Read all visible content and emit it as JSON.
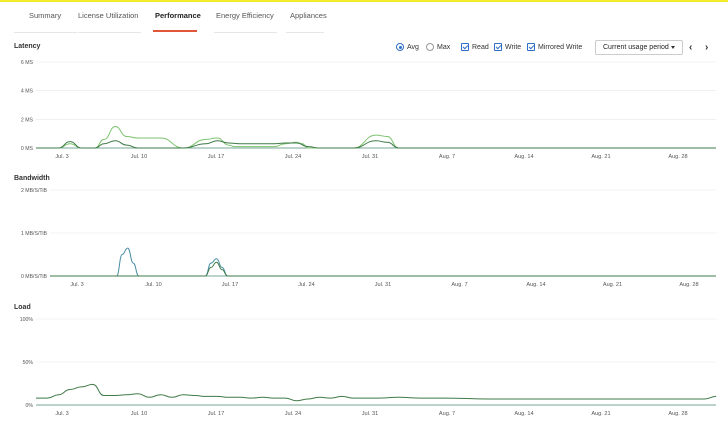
{
  "tabs": [
    {
      "label": "Summary",
      "active": false
    },
    {
      "label": "License Utilization",
      "active": false
    },
    {
      "label": "Performance",
      "active": true
    },
    {
      "label": "Energy Efficiency",
      "active": false
    },
    {
      "label": "Appliances",
      "active": false
    }
  ],
  "controls": {
    "avg_label": "Avg",
    "max_label": "Max",
    "avg_selected": true,
    "read_label": "Read",
    "write_label": "Write",
    "mirrored_label": "Mirrored Write",
    "read_checked": true,
    "write_checked": true,
    "mirrored_checked": true,
    "period_label": "Current usage period",
    "prev_icon": "chevron-left-icon",
    "next_icon": "chevron-right-icon"
  },
  "colors": {
    "light_green": "#7cc36e",
    "dark_green": "#3f7a48",
    "teal": "#4a8fa3",
    "grid": "#e8e8e8",
    "baseline": "#7aa79a",
    "tab_underline": "#e0563a",
    "accent": "#2f6fc9"
  },
  "chart_data": [
    {
      "type": "line",
      "title": "Latency",
      "y_ticks": [
        "6 MS",
        "4 MS",
        "2 MS",
        "0 MS"
      ],
      "ylim": [
        0,
        6
      ],
      "x_ticks": [
        "Jul. 3",
        "Jul. 10",
        "Jul. 17",
        "Jul. 24",
        "Jul. 31",
        "Aug. 7",
        "Aug. 14",
        "Aug. 21",
        "Aug. 28"
      ],
      "series": [
        {
          "name": "Read",
          "color": "#7cc36e",
          "x": [
            0,
            2,
            3,
            4,
            5.2,
            6,
            7,
            8,
            9,
            10,
            11,
            13,
            15,
            16,
            17,
            17.5,
            18,
            19,
            20,
            21,
            22,
            23,
            23.5,
            24,
            25,
            27,
            28,
            30,
            31,
            32,
            33,
            34,
            35,
            36,
            38,
            40,
            60
          ],
          "y": [
            0,
            0,
            0.3,
            0,
            0,
            0.6,
            1.5,
            0.8,
            0.7,
            0.7,
            0.7,
            0,
            0.6,
            0.7,
            0.2,
            0.1,
            0.1,
            0.1,
            0.1,
            0.1,
            0.3,
            0.4,
            0.3,
            0,
            0,
            0,
            0,
            0.9,
            0.8,
            0,
            0,
            0,
            0,
            0,
            0,
            0,
            0
          ]
        },
        {
          "name": "Write",
          "color": "#3f7a48",
          "x": [
            0,
            2,
            3,
            4,
            5.2,
            6,
            7,
            8,
            9,
            10,
            11,
            13,
            15,
            16,
            17,
            18,
            19,
            20,
            21,
            22,
            23,
            24,
            25,
            27,
            28,
            30,
            31,
            32,
            33,
            34,
            60
          ],
          "y": [
            0,
            0,
            0.45,
            0,
            0,
            0.3,
            0.5,
            0.2,
            0,
            0,
            0,
            0,
            0.3,
            0.5,
            0.35,
            0.3,
            0.3,
            0.3,
            0.3,
            0.35,
            0.35,
            0.1,
            0,
            0,
            0,
            0.5,
            0.4,
            0,
            0,
            0,
            0
          ]
        }
      ]
    },
    {
      "type": "line",
      "title": "Bandwidth",
      "y_ticks": [
        "2 MB/S/TiB",
        "1 MB/S/TiB",
        "0 MB/S/TiB"
      ],
      "ylim": [
        0,
        2
      ],
      "x_ticks": [
        "Jul. 3",
        "Jul. 10",
        "Jul. 17",
        "Jul. 24",
        "Jul. 31",
        "Aug. 7",
        "Aug. 14",
        "Aug. 21",
        "Aug. 28"
      ],
      "series": [
        {
          "name": "Read",
          "color": "#4a8fa3",
          "x": [
            0,
            6,
            6.5,
            7,
            7.5,
            8,
            14,
            14.5,
            15,
            15.5,
            16,
            60
          ],
          "y": [
            0,
            0,
            0.5,
            0.65,
            0.3,
            0,
            0,
            0.3,
            0.4,
            0.2,
            0,
            0
          ]
        },
        {
          "name": "Write",
          "color": "#3f7a48",
          "x": [
            0,
            14,
            14.5,
            15,
            15.5,
            16,
            60
          ],
          "y": [
            0,
            0,
            0.2,
            0.32,
            0.15,
            0,
            0
          ]
        }
      ]
    },
    {
      "type": "line",
      "title": "Load",
      "y_ticks": [
        "100%",
        "50%",
        "0%"
      ],
      "ylim": [
        0,
        100
      ],
      "x_ticks": [
        "Jul. 3",
        "Jul. 10",
        "Jul. 17",
        "Jul. 24",
        "Jul. 31",
        "Aug. 7",
        "Aug. 14",
        "Aug. 21",
        "Aug. 28"
      ],
      "series": [
        {
          "name": "Load",
          "color": "#3f7a48",
          "x": [
            0,
            1,
            2,
            3,
            4,
            5,
            6,
            7,
            8,
            9,
            10,
            11,
            12,
            13,
            14,
            15,
            16,
            17,
            18,
            19,
            20,
            21,
            22,
            23,
            24,
            25,
            26,
            27,
            28,
            30,
            32,
            34,
            36,
            40,
            45,
            50,
            55,
            58,
            59,
            60
          ],
          "y": [
            8,
            8,
            12,
            18,
            21,
            24,
            11,
            11,
            12,
            13,
            9,
            12,
            9,
            12,
            11,
            10,
            10,
            9,
            9,
            8,
            9,
            8,
            8,
            5,
            7,
            9,
            8,
            10,
            8,
            8,
            9,
            8,
            8,
            7,
            7,
            7,
            7,
            7,
            7,
            10
          ]
        }
      ]
    }
  ]
}
